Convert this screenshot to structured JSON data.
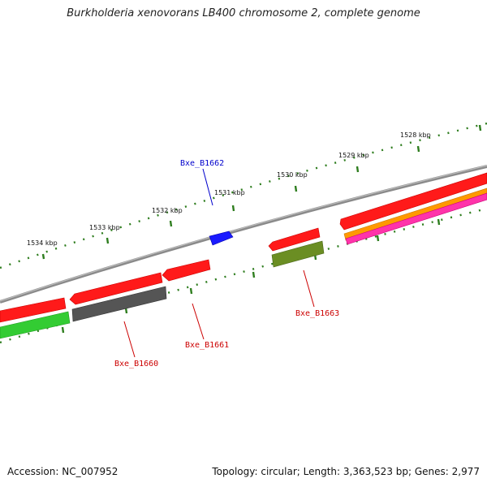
{
  "title": "Burkholderia xenovorans LB400 chromosome 2, complete genome",
  "footer": {
    "accession": "Accession: NC_007952",
    "topology": "Topology: circular; Length: 3,363,523 bp; Genes: 2,977"
  },
  "scale_labels": [
    "1528 kbp",
    "1529 kbp",
    "1530 kbp",
    "1531 kbp",
    "1532 kbp",
    "1533 kbp",
    "1534 kbp"
  ],
  "gene_labels": [
    "Bxe_B1662",
    "Bxe_B1663",
    "Bxe_B1661",
    "Bxe_B1660"
  ],
  "colors": {
    "backbone": "#8a8a8a",
    "tick": "#2e7d1e",
    "forward_gene": "#ff1a1a",
    "highlight_gene": "#1a1aff",
    "label_blue": "#0000cc",
    "label_red": "#cc0000",
    "dark_gray_gene": "#555555",
    "green_gene": "#33cc33",
    "olive_gene": "#6b8e23",
    "orange_gene": "#ff9900",
    "pink_gene": "#ff33aa"
  }
}
